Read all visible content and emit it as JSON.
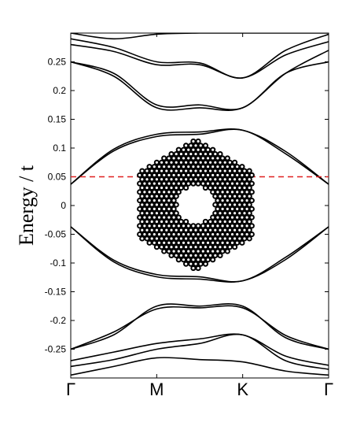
{
  "chart_data": {
    "type": "line",
    "title": "",
    "xlabel": "",
    "ylabel": "Energy / t",
    "x_ticks": [
      "Γ",
      "M",
      "K",
      "Γ"
    ],
    "x_tick_positions": [
      0,
      1,
      2,
      3
    ],
    "xlim": [
      0,
      3
    ],
    "ylim": [
      -0.3,
      0.3
    ],
    "y_ticks": [
      -0.25,
      -0.2,
      -0.15,
      -0.1,
      -0.05,
      0,
      0.05,
      0.1,
      0.15,
      0.2,
      0.25
    ],
    "y_tick_labels": [
      "-0.25",
      "-0.2",
      "-0.15",
      "-0.1",
      "-0.05",
      "0",
      "0.05",
      "0.1",
      "0.15",
      "0.2",
      "0.25"
    ],
    "grid": false,
    "reference_line": {
      "y": 0.05,
      "style": "dashed",
      "color": "#e02020"
    },
    "band_color": "#000000",
    "inset": "hexagonal-graphene-flake-with-central-hole",
    "series": [
      {
        "values": [
          [
            0,
            0.037
          ],
          [
            0.5,
            0.095
          ],
          [
            1,
            0.12
          ],
          [
            1.5,
            0.124
          ],
          [
            2,
            0.131
          ],
          [
            2.5,
            0.09
          ],
          [
            3,
            0.037
          ]
        ]
      },
      {
        "values": [
          [
            0,
            0.037
          ],
          [
            0.5,
            0.098
          ],
          [
            1,
            0.124
          ],
          [
            1.5,
            0.128
          ],
          [
            2,
            0.131
          ],
          [
            2.5,
            0.094
          ],
          [
            3,
            0.037
          ]
        ]
      },
      {
        "values": [
          [
            0,
            -0.037
          ],
          [
            0.5,
            -0.095
          ],
          [
            1,
            -0.12
          ],
          [
            1.5,
            -0.124
          ],
          [
            2,
            -0.131
          ],
          [
            2.5,
            -0.09
          ],
          [
            3,
            -0.037
          ]
        ]
      },
      {
        "values": [
          [
            0,
            -0.037
          ],
          [
            0.5,
            -0.098
          ],
          [
            1,
            -0.124
          ],
          [
            1.5,
            -0.128
          ],
          [
            2,
            -0.131
          ],
          [
            2.5,
            -0.094
          ],
          [
            3,
            -0.037
          ]
        ]
      },
      {
        "values": [
          [
            0,
            0.25
          ],
          [
            0.5,
            0.225
          ],
          [
            1,
            0.17
          ],
          [
            1.5,
            0.17
          ],
          [
            2,
            0.17
          ],
          [
            2.5,
            0.23
          ],
          [
            3,
            0.27
          ]
        ]
      },
      {
        "values": [
          [
            0,
            0.25
          ],
          [
            0.5,
            0.23
          ],
          [
            1,
            0.175
          ],
          [
            1.5,
            0.175
          ],
          [
            2,
            0.17
          ],
          [
            2.5,
            0.23
          ],
          [
            3,
            0.25
          ]
        ]
      },
      {
        "values": [
          [
            0,
            0.28
          ],
          [
            0.5,
            0.268
          ],
          [
            1,
            0.245
          ],
          [
            1.5,
            0.245
          ],
          [
            2,
            0.222
          ],
          [
            2.5,
            0.262
          ],
          [
            3,
            0.285
          ]
        ]
      },
      {
        "values": [
          [
            0,
            0.29
          ],
          [
            0.5,
            0.275
          ],
          [
            1,
            0.25
          ],
          [
            1.5,
            0.248
          ],
          [
            2,
            0.222
          ],
          [
            2.5,
            0.27
          ],
          [
            3,
            0.298
          ]
        ]
      },
      {
        "values": [
          [
            0,
            0.3
          ],
          [
            0.5,
            0.29
          ],
          [
            1,
            0.298
          ],
          [
            1.5,
            0.3
          ],
          [
            2,
            0.3
          ],
          [
            2.5,
            0.3
          ],
          [
            3,
            0.3
          ]
        ]
      },
      {
        "values": [
          [
            0,
            -0.25
          ],
          [
            0.5,
            -0.225
          ],
          [
            1,
            -0.175
          ],
          [
            1.5,
            -0.175
          ],
          [
            2,
            -0.175
          ],
          [
            2.5,
            -0.23
          ],
          [
            3,
            -0.25
          ]
        ]
      },
      {
        "values": [
          [
            0,
            -0.25
          ],
          [
            0.5,
            -0.22
          ],
          [
            1,
            -0.18
          ],
          [
            1.5,
            -0.178
          ],
          [
            2,
            -0.178
          ],
          [
            2.5,
            -0.226
          ],
          [
            3,
            -0.25
          ]
        ]
      },
      {
        "values": [
          [
            0,
            -0.27
          ],
          [
            0.5,
            -0.255
          ],
          [
            1,
            -0.24
          ],
          [
            1.5,
            -0.232
          ],
          [
            2,
            -0.225
          ],
          [
            2.5,
            -0.262
          ],
          [
            3,
            -0.278
          ]
        ]
      },
      {
        "values": [
          [
            0,
            -0.28
          ],
          [
            0.5,
            -0.268
          ],
          [
            1,
            -0.25
          ],
          [
            1.5,
            -0.24
          ],
          [
            2,
            -0.225
          ],
          [
            2.5,
            -0.27
          ],
          [
            3,
            -0.285
          ]
        ]
      },
      {
        "values": [
          [
            0,
            -0.295
          ],
          [
            0.5,
            -0.28
          ],
          [
            1,
            -0.265
          ],
          [
            1.5,
            -0.268
          ],
          [
            2,
            -0.272
          ],
          [
            2.5,
            -0.288
          ],
          [
            3,
            -0.295
          ]
        ]
      }
    ]
  }
}
